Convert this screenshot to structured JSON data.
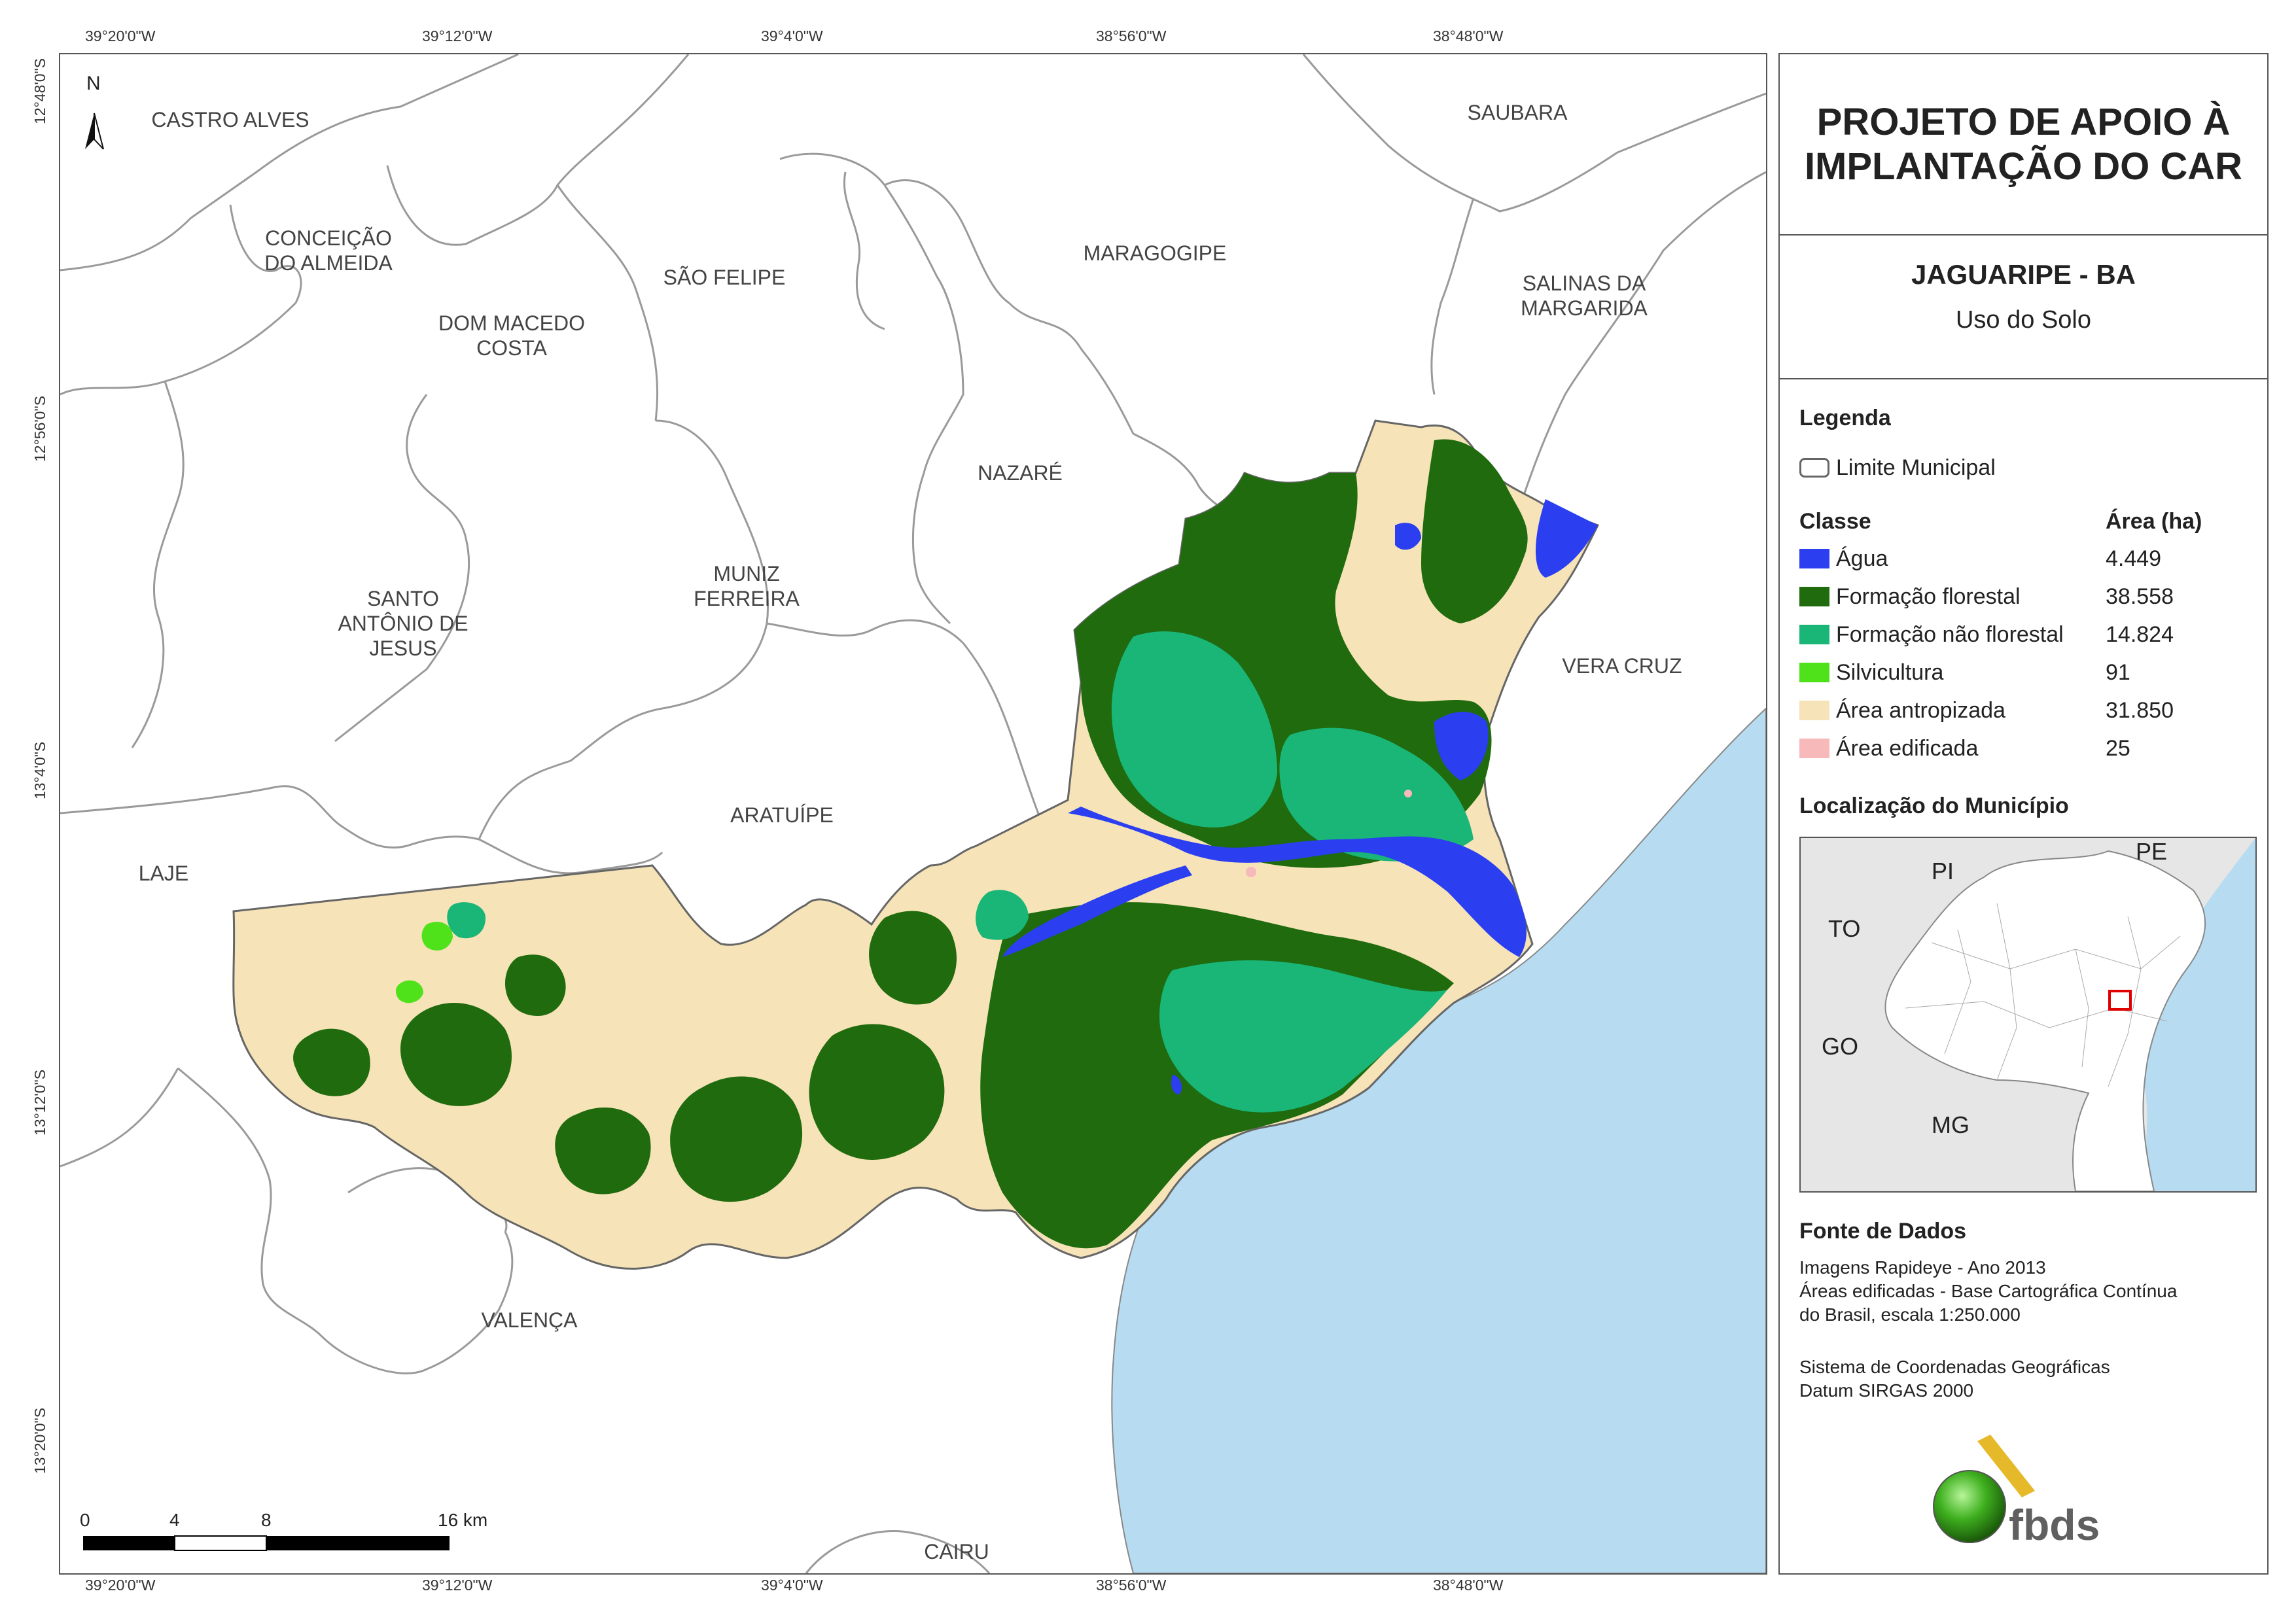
{
  "title": {
    "line1": "PROJETO DE APOIO À",
    "line2": "IMPLANTAÇÃO DO CAR"
  },
  "municipality": "JAGUARIPE - BA",
  "theme": "Uso do Solo",
  "legend": {
    "heading": "Legenda",
    "boundary_label": "Limite Municipal",
    "class_header": "Classe",
    "area_header": "Área (ha)",
    "classes": [
      {
        "label": "Água",
        "area": "4.449",
        "color": "#2b3ff0"
      },
      {
        "label": "Formação florestal",
        "area": "38.558",
        "color": "#1f6b0d"
      },
      {
        "label": "Formação não florestal",
        "area": "14.824",
        "color": "#19b677"
      },
      {
        "label": "Silvicultura",
        "area": "91",
        "color": "#4fe21a"
      },
      {
        "label": "Área antropizada",
        "area": "31.850",
        "color": "#f6e3b8"
      },
      {
        "label": "Área edificada",
        "area": "25",
        "color": "#f7b9b9"
      }
    ]
  },
  "locator": {
    "heading": "Localização do Município",
    "labels": {
      "pi": "PI",
      "pe": "PE",
      "to": "TO",
      "go": "GO",
      "mg": "MG"
    }
  },
  "sources": {
    "heading": "Fonte de Dados",
    "line1": "Imagens Rapideye - Ano 2013",
    "line2": "Áreas edificadas - Base Cartográfica Contínua",
    "line3": "do Brasil, escala 1:250.000",
    "line4": "Sistema de Coordenadas Geográficas",
    "line5": "Datum SIRGAS 2000"
  },
  "logo": {
    "text": "fbds"
  },
  "north": "N",
  "coords": {
    "top": [
      "39°20'0\"W",
      "39°12'0\"W",
      "39°4'0\"W",
      "38°56'0\"W",
      "38°48'0\"W"
    ],
    "bottom": [
      "39°20'0\"W",
      "39°12'0\"W",
      "39°4'0\"W",
      "38°56'0\"W",
      "38°48'0\"W"
    ],
    "left": [
      "12°48'0\"S",
      "12°56'0\"S",
      "13°4'0\"S",
      "13°12'0\"S",
      "13°20'0\"S"
    ]
  },
  "municipalities": {
    "castro_alves": "CASTRO ALVES",
    "conceicao": "CONCEIÇÃO\nDO ALMEIDA",
    "dom_macedo": "DOM MACEDO\nCOSTA",
    "sao_felipe": "SÃO FELIPE",
    "maragogipe": "MARAGOGIPE",
    "saubara": "SAUBARA",
    "salinas": "SALINAS DA\nMARGARIDA",
    "nazare": "NAZARÉ",
    "santo_antonio": "SANTO\nANTÔNIO DE\nJESUS",
    "muniz": "MUNIZ\nFERREIRA",
    "vera_cruz": "VERA CRUZ",
    "aratuipe": "ARATUÍPE",
    "laje": "LAJE",
    "valenca": "VALENÇA",
    "cairu": "CAIRU"
  },
  "scale": {
    "labels": [
      "0",
      "4",
      "8",
      "16 km"
    ]
  }
}
